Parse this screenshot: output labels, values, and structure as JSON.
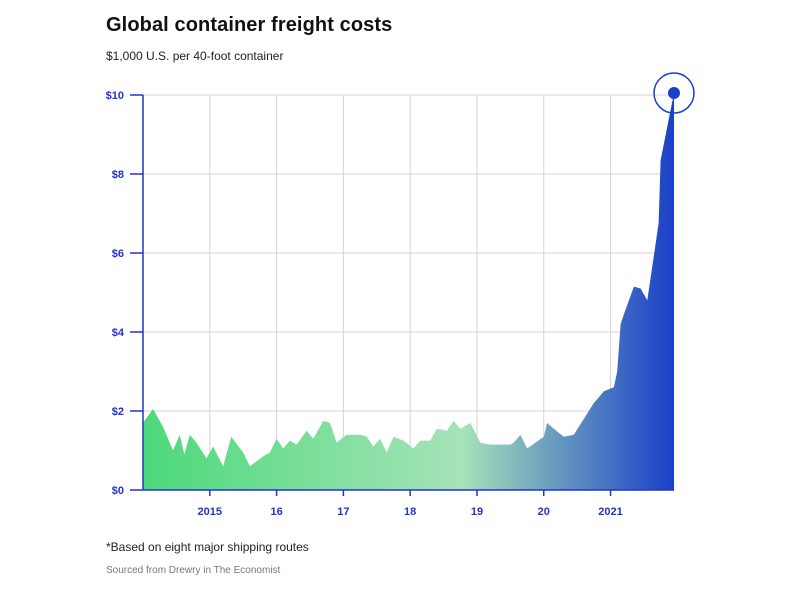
{
  "title": "Global container freight costs",
  "subtitle": "$1,000 U.S. per 40-foot container",
  "footnote": "*Based on eight major shipping routes",
  "source": "Sourced from Drewry in The Economist",
  "colors": {
    "axis": "#2233c8",
    "grid": "#d4d4d4",
    "gradient_start": "#4cd97a",
    "gradient_mid": "#a6e3b8",
    "gradient_end": "#1a3fc8",
    "highlight": "#1a3fc8"
  },
  "chart_data": {
    "type": "area",
    "xlim": [
      2014.0,
      2021.95
    ],
    "ylim": [
      0,
      10
    ],
    "x_ticks": [
      {
        "value": 2015,
        "label": "2015"
      },
      {
        "value": 2016,
        "label": "16"
      },
      {
        "value": 2017,
        "label": "17"
      },
      {
        "value": 2018,
        "label": "18"
      },
      {
        "value": 2019,
        "label": "19"
      },
      {
        "value": 2020,
        "label": "20"
      },
      {
        "value": 2021,
        "label": "2021"
      }
    ],
    "y_ticks": [
      {
        "value": 0,
        "label": "$0"
      },
      {
        "value": 2,
        "label": "$2"
      },
      {
        "value": 4,
        "label": "$4"
      },
      {
        "value": 6,
        "label": "$6"
      },
      {
        "value": 8,
        "label": "$8"
      },
      {
        "value": 10,
        "label": "$10"
      }
    ],
    "grid": true,
    "series": [
      {
        "x": [
          2014.0,
          2014.15,
          2014.3,
          2014.45,
          2014.55,
          2014.62,
          2014.7,
          2014.8,
          2014.95,
          2015.05,
          2015.2,
          2015.32,
          2015.5,
          2015.6,
          2015.8,
          2015.9,
          2016.0,
          2016.1,
          2016.2,
          2016.3,
          2016.45,
          2016.55,
          2016.7,
          2016.8,
          2016.9,
          2017.05,
          2017.15,
          2017.25,
          2017.35,
          2017.45,
          2017.55,
          2017.65,
          2017.75,
          2017.9,
          2018.05,
          2018.15,
          2018.3,
          2018.4,
          2018.55,
          2018.65,
          2018.75,
          2018.9,
          2019.05,
          2019.2,
          2019.35,
          2019.5,
          2019.55,
          2019.65,
          2019.75,
          2020.0,
          2020.05,
          2020.15,
          2020.3,
          2020.45,
          2020.6,
          2020.75,
          2020.9,
          2021.05,
          2021.1,
          2021.15,
          2021.2,
          2021.35,
          2021.45,
          2021.55,
          2021.72,
          2021.75,
          2021.95
        ],
        "y": [
          1.7,
          2.05,
          1.6,
          1.0,
          1.4,
          0.9,
          1.4,
          1.2,
          0.8,
          1.1,
          0.6,
          1.35,
          0.95,
          0.6,
          0.85,
          0.95,
          1.3,
          1.05,
          1.25,
          1.15,
          1.5,
          1.3,
          1.75,
          1.7,
          1.2,
          1.4,
          1.4,
          1.4,
          1.35,
          1.1,
          1.3,
          0.95,
          1.35,
          1.25,
          1.05,
          1.25,
          1.25,
          1.55,
          1.5,
          1.75,
          1.55,
          1.7,
          1.2,
          1.15,
          1.15,
          1.15,
          1.2,
          1.4,
          1.05,
          1.35,
          1.7,
          1.55,
          1.35,
          1.4,
          1.8,
          2.2,
          2.5,
          2.6,
          3.0,
          4.2,
          4.45,
          5.15,
          5.1,
          4.8,
          6.75,
          8.35,
          10.05
        ]
      }
    ],
    "highlight_point": {
      "x": 2021.95,
      "y": 10.05
    }
  }
}
